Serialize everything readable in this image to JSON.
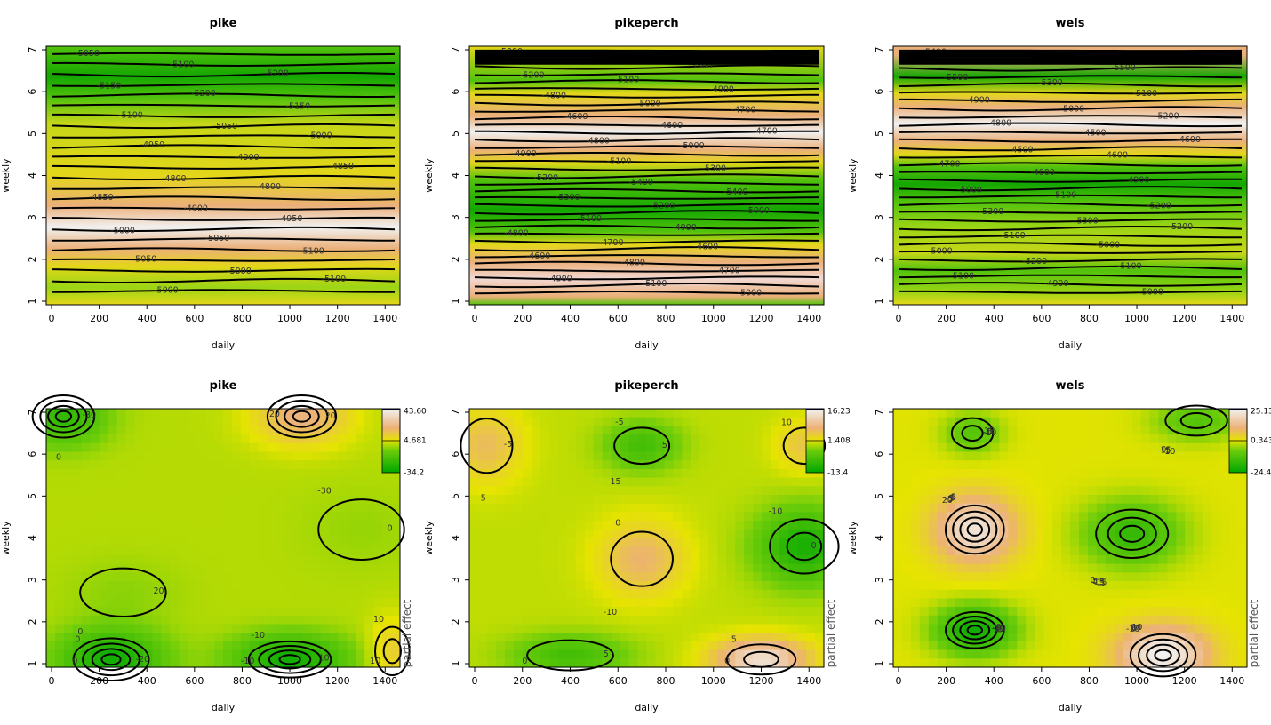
{
  "chart_data": [
    {
      "type": "contour",
      "title": "pike",
      "xlabel": "daily",
      "ylabel": "weekly",
      "xlim": [
        0,
        1440
      ],
      "ylim": [
        1,
        7
      ],
      "xticks": [
        "0",
        "200",
        "400",
        "600",
        "800",
        "1000",
        "1200",
        "1400"
      ],
      "yticks": [
        "1",
        "2",
        "3",
        "4",
        "5",
        "6",
        "7"
      ],
      "bands": [
        {
          "y": 1.0,
          "color": "#e4d61a"
        },
        {
          "y": 1.4,
          "color": "#9bd515"
        },
        {
          "y": 1.9,
          "color": "#e4d61a"
        },
        {
          "y": 2.3,
          "color": "#ebb07a"
        },
        {
          "y": 2.8,
          "color": "#f1f1f1"
        },
        {
          "y": 3.3,
          "color": "#ebb07a"
        },
        {
          "y": 4.0,
          "color": "#e4d61a"
        },
        {
          "y": 5.2,
          "color": "#c6d618"
        },
        {
          "y": 5.8,
          "color": "#52c20c"
        },
        {
          "y": 6.3,
          "color": "#14a700"
        },
        {
          "y": 7.0,
          "color": "#52c20c"
        }
      ],
      "contour_labels": [
        "-5050",
        "-5100",
        "-5200",
        "-5150",
        "-5200",
        "-5150",
        "-5100",
        "-5050",
        "-5000",
        "-4950",
        "-4900",
        "-4850",
        "-4800",
        "-4800",
        "-4850",
        "-4900",
        "-4950",
        "-5000",
        "-5050",
        "-5100",
        "-5050",
        "-5000",
        "-5100",
        "-5000"
      ]
    },
    {
      "type": "contour",
      "title": "pikeperch",
      "xlabel": "daily",
      "ylabel": "weekly",
      "xlim": [
        0,
        1440
      ],
      "ylim": [
        1,
        7
      ],
      "xticks": [
        "0",
        "200",
        "400",
        "600",
        "800",
        "1000",
        "1200",
        "1400"
      ],
      "yticks": [
        "1",
        "2",
        "3",
        "4",
        "5",
        "6",
        "7"
      ],
      "bands": [
        {
          "y": 1.0,
          "color": "#52c20c"
        },
        {
          "y": 1.2,
          "color": "#ebb07a"
        },
        {
          "y": 1.6,
          "color": "#f1d8d2"
        },
        {
          "y": 2.0,
          "color": "#ebb07a"
        },
        {
          "y": 2.4,
          "color": "#e4d61a"
        },
        {
          "y": 2.7,
          "color": "#52c20c"
        },
        {
          "y": 3.2,
          "color": "#14a700"
        },
        {
          "y": 3.9,
          "color": "#52c20c"
        },
        {
          "y": 4.3,
          "color": "#e4d61a"
        },
        {
          "y": 4.6,
          "color": "#ebb07a"
        },
        {
          "y": 5.0,
          "color": "#f1f1f1"
        },
        {
          "y": 5.4,
          "color": "#ebb07a"
        },
        {
          "y": 5.9,
          "color": "#e4d61a"
        },
        {
          "y": 6.2,
          "color": "#52c20c"
        },
        {
          "y": 7.0,
          "color": "#e4d61a"
        }
      ],
      "contour_labels": [
        "-5300",
        "-5400",
        "-5300",
        "-5200",
        "-5100",
        "-4900",
        "-4800",
        "-5000",
        "-4700",
        "-4600",
        "-4600",
        "-4700",
        "-4800",
        "-5000",
        "-4900",
        "-5100",
        "-5300",
        "-5200",
        "-5400",
        "-5400",
        "-5300",
        "-5200",
        "-5000",
        "-5100",
        "-4900",
        "-4800",
        "-4700",
        "-4600",
        "-4600",
        "-4800",
        "-4700",
        "-4900",
        "-5100",
        "-5000"
      ]
    },
    {
      "type": "contour",
      "title": "wels",
      "xlabel": "daily",
      "ylabel": "weekly",
      "xlim": [
        0,
        1440
      ],
      "ylim": [
        1,
        7
      ],
      "xticks": [
        "0",
        "200",
        "400",
        "600",
        "800",
        "1000",
        "1200",
        "1400"
      ],
      "yticks": [
        "1",
        "2",
        "3",
        "4",
        "5",
        "6",
        "7"
      ],
      "bands": [
        {
          "y": 1.0,
          "color": "#e4d61a"
        },
        {
          "y": 1.3,
          "color": "#9bd515"
        },
        {
          "y": 1.8,
          "color": "#52c20c"
        },
        {
          "y": 2.2,
          "color": "#c6d618"
        },
        {
          "y": 2.8,
          "color": "#9bd515"
        },
        {
          "y": 3.4,
          "color": "#52c20c"
        },
        {
          "y": 3.8,
          "color": "#14a700"
        },
        {
          "y": 4.2,
          "color": "#52c20c"
        },
        {
          "y": 4.5,
          "color": "#e4d61a"
        },
        {
          "y": 4.8,
          "color": "#ebb07a"
        },
        {
          "y": 5.2,
          "color": "#f1f1f1"
        },
        {
          "y": 5.6,
          "color": "#ebb07a"
        },
        {
          "y": 5.9,
          "color": "#e4d61a"
        },
        {
          "y": 6.3,
          "color": "#14a700"
        },
        {
          "y": 6.8,
          "color": "#ebb07a"
        }
      ],
      "contour_labels": [
        "-5400",
        "-5300",
        "-5500",
        "-5500",
        "-5300",
        "-5100",
        "-4900",
        "-5000",
        "-5200",
        "-4800",
        "-4500",
        "-4600",
        "-4500",
        "-4600",
        "-4700",
        "-4800",
        "-4900",
        "-5000",
        "-5100",
        "-5200",
        "-5300",
        "-5300",
        "-5200",
        "-5100",
        "-5000",
        "-5000",
        "-5200",
        "-5100",
        "-5100",
        "-4900",
        "-5000"
      ]
    },
    {
      "type": "contour",
      "title": "pike",
      "xlabel": "daily",
      "ylabel": "weekly",
      "zlabel": "partial effect",
      "xlim": [
        0,
        1440
      ],
      "ylim": [
        1,
        7
      ],
      "xticks": [
        "0",
        "200",
        "400",
        "600",
        "800",
        "1000",
        "1200",
        "1400"
      ],
      "yticks": [
        "1",
        "2",
        "3",
        "4",
        "5",
        "6",
        "7"
      ],
      "colorbar": {
        "max": "43.60",
        "mid": "4.681",
        "min": "-34.2"
      },
      "contour_labels": [
        "-20",
        "-10",
        "0",
        "20",
        "10",
        "0",
        "0",
        "0",
        "-10",
        "-30",
        "-20",
        "10",
        "20",
        "-30",
        "0",
        "10"
      ]
    },
    {
      "type": "contour",
      "title": "pikeperch",
      "xlabel": "daily",
      "ylabel": "weekly",
      "zlabel": "partial effect",
      "xlim": [
        0,
        1440
      ],
      "ylim": [
        1,
        7
      ],
      "xticks": [
        "0",
        "200",
        "400",
        "600",
        "800",
        "1000",
        "1200",
        "1400"
      ],
      "yticks": [
        "1",
        "2",
        "3",
        "4",
        "5",
        "6",
        "7"
      ],
      "colorbar": {
        "max": "16.23",
        "mid": "1.408",
        "min": "-13.4"
      },
      "contour_labels": [
        "5",
        "0",
        "-5",
        "0",
        "5",
        "0",
        "5",
        "-5",
        "-10",
        "-5",
        "-10",
        "0",
        "5",
        "10",
        "15"
      ]
    },
    {
      "type": "contour",
      "title": "wels",
      "xlabel": "daily",
      "ylabel": "weekly",
      "zlabel": "partial effect",
      "xlim": [
        0,
        1440
      ],
      "ylim": [
        1,
        7
      ],
      "xticks": [
        "0",
        "200",
        "400",
        "600",
        "800",
        "1000",
        "1200",
        "1400"
      ],
      "yticks": [
        "1",
        "2",
        "3",
        "4",
        "5",
        "6",
        "7"
      ],
      "colorbar": {
        "max": "25.13",
        "mid": "0.343",
        "min": "-24.4"
      },
      "contour_labels": [
        "-10",
        "-5",
        "0",
        "-5",
        "10",
        "0",
        "-10",
        "-5",
        "5",
        "10",
        "20",
        "15",
        "5",
        "-5",
        "-15",
        "-10",
        "0",
        "5",
        "0",
        "-5",
        "-15",
        "-20",
        "-10",
        "10",
        "15",
        "20",
        "5",
        "0"
      ]
    }
  ]
}
